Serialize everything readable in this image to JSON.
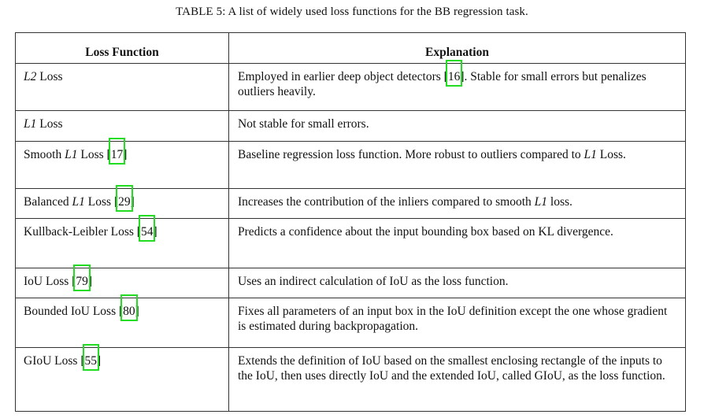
{
  "caption": "TABLE 5: A list of widely used loss functions for the BB regression task.",
  "headers": {
    "function": "Loss Function",
    "explanation": "Explanation"
  },
  "rows": [
    {
      "name_pre": "",
      "name_math": "L2",
      "name_post": " Loss",
      "cite": "",
      "ex_pre": "Employed in earlier deep object detectors [",
      "ex_cite": "16",
      "ex_post": "]. Stable for small errors but penalizes outliers heavily."
    },
    {
      "name_pre": "",
      "name_math": "L1",
      "name_post": " Loss",
      "cite": "",
      "ex_pre": "Not stable for small errors.",
      "ex_cite": "",
      "ex_post": ""
    },
    {
      "name_pre": "Smooth ",
      "name_math": "L1",
      "name_post": " Loss [",
      "cite": "17",
      "ex_pre": "Baseline regression loss function. More robust to outliers compared to ",
      "ex_math": "L1",
      "ex_post": " Loss."
    },
    {
      "name_pre": "Balanced ",
      "name_math": "L1",
      "name_post": " Loss [",
      "cite": "29",
      "ex_pre": "Increases the contribution of the inliers compared to smooth ",
      "ex_math": "L1",
      "ex_post": " loss."
    },
    {
      "name_pre": "Kullback-Leibler Loss [",
      "name_math": "",
      "name_post": "",
      "cite": "54",
      "ex_pre": "Predicts a confidence about the input bounding box based on KL divergence.",
      "ex_cite": "",
      "ex_post": ""
    },
    {
      "name_pre": "IoU Loss [",
      "name_math": "",
      "name_post": "",
      "cite": "79",
      "ex_pre": "Uses an indirect calculation of IoU as the loss function.",
      "ex_cite": "",
      "ex_post": ""
    },
    {
      "name_pre": "Bounded IoU Loss [",
      "name_math": "",
      "name_post": "",
      "cite": "80",
      "ex_pre": "Fixes all parameters of an input box in the IoU definition except the one whose gradient is estimated during backpropagation.",
      "ex_cite": "",
      "ex_post": ""
    },
    {
      "name_pre": "GIoU Loss [",
      "name_math": "",
      "name_post": "",
      "cite": "55",
      "ex_pre": "Extends the definition of IoU based on the smallest enclosing rectangle of the inputs to the IoU, then uses directly IoU and the extended IoU, called GIoU, as the loss function.",
      "ex_cite": "",
      "ex_post": ""
    }
  ],
  "highlight_color": "#22dd22"
}
